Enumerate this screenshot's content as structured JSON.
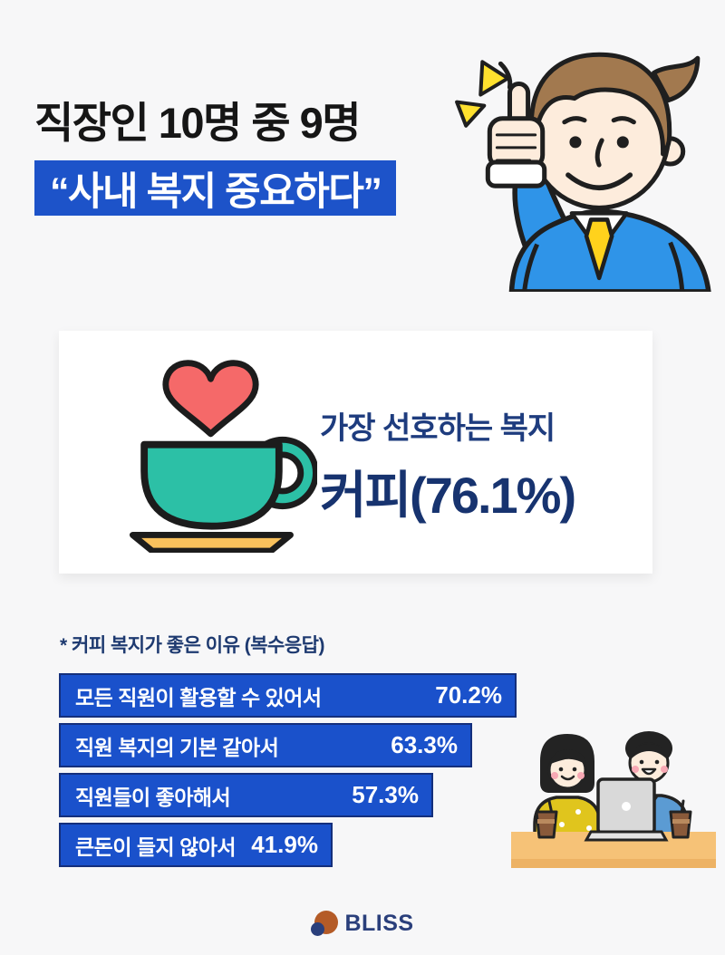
{
  "background": "#f7f7f8",
  "header": {
    "title": "직장인 10명 중 9명",
    "highlight": "“사내 복지 중요하다”",
    "highlight_bg": "#1d53c9",
    "illustration": "man-thumbs-up"
  },
  "card": {
    "subtitle": "가장 선호하는 복지",
    "headline": "커피(76.1%)",
    "icon": "coffee-cup-heart-icon",
    "text_color": "#17336f"
  },
  "chart_data": {
    "type": "bar",
    "orientation": "horizontal",
    "title": "* 커피 복지가 좋은 이유 (복수응답)",
    "categories": [
      "모든 직원이 활용할 수 있어서",
      "직원 복지의 기본 같아서",
      "직원들이 좋아해서",
      "큰돈이 들지 않아서"
    ],
    "values": [
      70.2,
      63.3,
      57.3,
      41.9
    ],
    "value_labels": [
      "70.2%",
      "63.3%",
      "57.3%",
      "41.9%"
    ],
    "xlim": [
      0,
      100
    ],
    "grid": false,
    "legend": "none",
    "bar_color": "#1a51cb",
    "bar_border_color": "#142f7c",
    "value_label_position": "inside-right"
  },
  "footer": {
    "brand": "BLISS",
    "brand_color": "#2a3f7b",
    "brand_icon": "bliss-logo-icon",
    "brand_icon_colors": [
      "#b45b27",
      "#2a3f7b"
    ]
  },
  "illustrations": {
    "man_thumbs_up": "man-thumbs-up-illustration",
    "coworkers_desk": "coworkers-laptop-coffee-illustration"
  }
}
